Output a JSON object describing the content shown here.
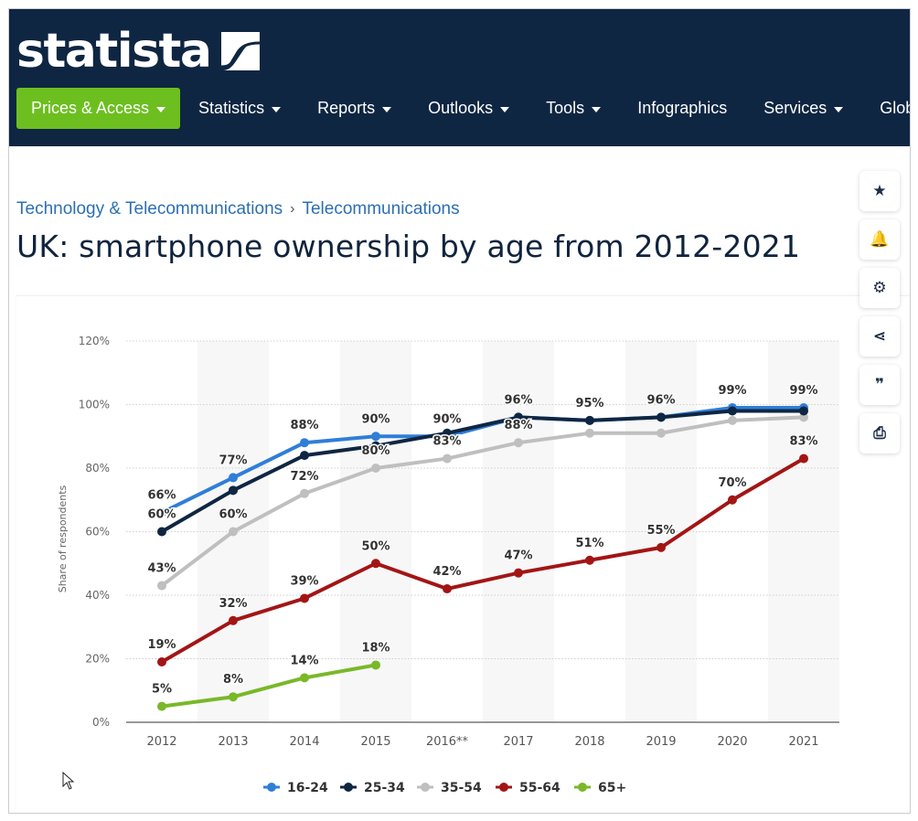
{
  "header": {
    "logo_text": "statista",
    "nav": [
      {
        "label": "Prices & Access",
        "caret": true,
        "primary": true
      },
      {
        "label": "Statistics",
        "caret": true
      },
      {
        "label": "Reports",
        "caret": true
      },
      {
        "label": "Outlooks",
        "caret": true
      },
      {
        "label": "Tools",
        "caret": true
      },
      {
        "label": "Infographics",
        "caret": false
      },
      {
        "label": "Services",
        "caret": true
      },
      {
        "label": "Global S",
        "caret": false
      }
    ]
  },
  "breadcrumb": {
    "level1": "Technology & Telecommunications",
    "separator": "›",
    "level2": "Telecommunications"
  },
  "page_title": "UK: smartphone ownership by age from 2012-2021",
  "side_tools": [
    {
      "icon": "star-icon",
      "glyph": "★"
    },
    {
      "icon": "bell-icon",
      "glyph": "🔔"
    },
    {
      "icon": "gear-icon",
      "glyph": "⚙"
    },
    {
      "icon": "share-icon",
      "glyph": "⋖"
    },
    {
      "icon": "quote-icon",
      "glyph": "❞"
    },
    {
      "icon": "print-icon",
      "glyph": "⎙"
    }
  ],
  "colors": {
    "header_bg": "#0f2642",
    "accent_green": "#6cbf1f",
    "link_blue": "#2c6fb3"
  },
  "chart_data": {
    "type": "line",
    "title": "",
    "xlabel": "",
    "ylabel": "Share of respondents",
    "x": [
      "2012",
      "2013",
      "2014",
      "2015",
      "2016**",
      "2017",
      "2018",
      "2019",
      "2020",
      "2021"
    ],
    "ylim": [
      0,
      120
    ],
    "yticks": [
      "0%",
      "20%",
      "40%",
      "60%",
      "80%",
      "100%",
      "120%"
    ],
    "grid": true,
    "legend_position": "bottom",
    "series": [
      {
        "name": "16-24",
        "color": "#2f7ed8",
        "values": [
          66,
          77,
          88,
          90,
          90,
          96,
          95,
          96,
          99,
          99
        ],
        "labels": [
          "66%",
          "77%",
          "88%",
          "90%",
          "90%",
          "96%",
          "95%",
          "96%",
          "99%",
          "99%"
        ]
      },
      {
        "name": "25-34",
        "color": "#0f2642",
        "values": [
          60,
          73,
          84,
          87,
          91,
          96,
          95,
          96,
          98,
          98
        ],
        "labels": [
          "60%",
          "",
          "",
          "",
          "",
          "",
          "",
          "",
          "",
          ""
        ]
      },
      {
        "name": "35-54",
        "color": "#bfbfbf",
        "values": [
          43,
          60,
          72,
          80,
          83,
          88,
          91,
          91,
          95,
          96
        ],
        "labels": [
          "43%",
          "60%",
          "72%",
          "80%",
          "83%",
          "88%",
          "",
          "",
          "",
          ""
        ]
      },
      {
        "name": "55-64",
        "color": "#a31515",
        "values": [
          19,
          32,
          39,
          50,
          42,
          47,
          51,
          55,
          70,
          83
        ],
        "labels": [
          "19%",
          "32%",
          "39%",
          "50%",
          "42%",
          "47%",
          "51%",
          "55%",
          "70%",
          "83%"
        ]
      },
      {
        "name": "65+",
        "color": "#79b829",
        "values": [
          5,
          8,
          14,
          18,
          null,
          null,
          null,
          null,
          null,
          null
        ],
        "labels": [
          "5%",
          "8%",
          "14%",
          "18%",
          "",
          "",
          "",
          "",
          "",
          ""
        ]
      }
    ]
  }
}
